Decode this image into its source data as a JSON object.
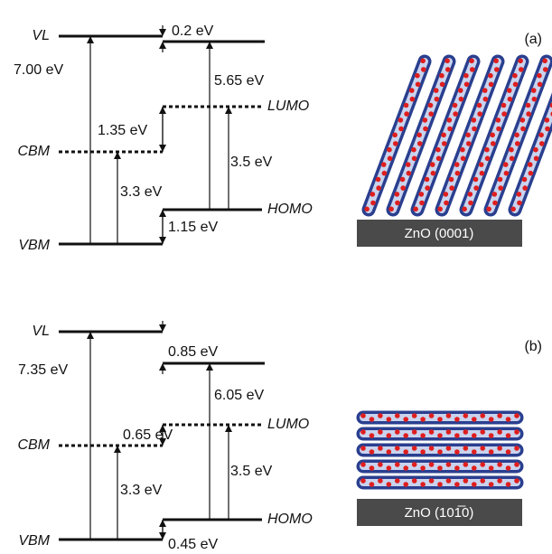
{
  "panels": [
    {
      "label": "(a)",
      "vl": "VL",
      "cbm": "CBM",
      "vbm": "VBM",
      "lumo": "LUMO",
      "homo": "HOMO",
      "vl_gap": "7.00 eV",
      "vl_offset": "0.2 eV",
      "ionization": "5.65 eV",
      "lumo_offset": "1.35 eV",
      "zno_gap": "3.3 eV",
      "homo_lumo_gap": "3.5 eV",
      "homo_offset": "1.15 eV",
      "substrate": "ZnO (0001)"
    },
    {
      "label": "(b)",
      "vl": "VL",
      "cbm": "CBM",
      "vbm": "VBM",
      "lumo": "LUMO",
      "homo": "HOMO",
      "vl_gap": "7.35 eV",
      "vl_offset": "0.85 eV",
      "ionization": "6.05 eV",
      "lumo_offset": "0.65 eV",
      "zno_gap": "3.3 eV",
      "homo_lumo_gap": "3.5 eV",
      "homo_offset": "0.45 eV",
      "substrate": "ZnO (101̅0)"
    }
  ]
}
